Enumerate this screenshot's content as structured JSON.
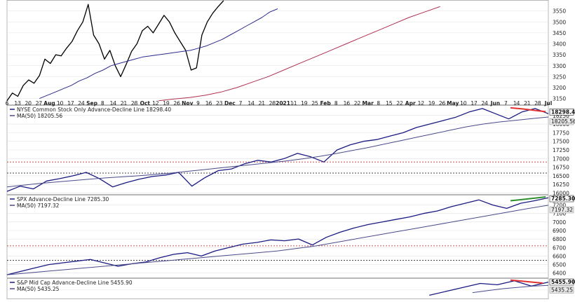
{
  "chart_data": [
    {
      "type": "line",
      "title": "",
      "x_tick_labels": [
        "6",
        "13",
        "20",
        "27",
        "Aug",
        "10",
        "17",
        "24",
        "Sep",
        "8",
        "14",
        "21",
        "28",
        "Oct",
        "12",
        "19",
        "26",
        "Nov",
        "9",
        "16",
        "23",
        "Dec",
        "7",
        "14",
        "21",
        "28",
        "2021",
        "11",
        "19",
        "25",
        "Feb",
        "8",
        "16",
        "22",
        "Mar",
        "8",
        "15",
        "22",
        "Apr",
        "12",
        "19",
        "26",
        "May",
        "10",
        "17",
        "24",
        "Jun",
        "7",
        "14",
        "21",
        "28",
        "Jul"
      ],
      "y_tick_labels": [
        "3550",
        "3500",
        "3450",
        "3400",
        "3350",
        "3300",
        "3250",
        "3200",
        "3150"
      ],
      "series": [
        {
          "name": "",
          "color": "#000000",
          "values": [
            3140,
            3175,
            3160,
            3210,
            3235,
            3220,
            3255,
            3330,
            3310,
            3350,
            3345,
            3380,
            3410,
            3460,
            3500,
            3580,
            3440,
            3400,
            3330,
            3370,
            3300,
            3250,
            3305,
            3365,
            3400,
            3460,
            3480,
            3450,
            3490,
            3530,
            3500,
            3450,
            3410,
            3370,
            3280,
            3290,
            3440,
            3500,
            3540,
            3570,
            3600
          ]
        },
        {
          "name": "",
          "color": "#2c2c8e",
          "values": [
            3150,
            3165,
            3180,
            3195,
            3210,
            3230,
            3245,
            3265,
            3280,
            3300,
            3310,
            3320,
            3330,
            3340,
            3345,
            3350,
            3355,
            3360,
            3365,
            3370,
            3380,
            3390,
            3405,
            3420,
            3440,
            3460,
            3480,
            3500,
            3520,
            3545,
            3560
          ]
        },
        {
          "name": "",
          "color": "#b03050",
          "values": [
            3140,
            3148,
            3155,
            3165,
            3180,
            3200,
            3225,
            3250,
            3280,
            3310,
            3340,
            3370,
            3400,
            3430,
            3460,
            3490,
            3520,
            3545,
            3570
          ]
        }
      ]
    },
    {
      "type": "line",
      "title": "",
      "y_tick_labels": [
        "18500",
        "18250",
        "18000",
        "17750",
        "17500",
        "17250",
        "17000",
        "16750",
        "16500",
        "16250",
        "16000"
      ],
      "series": [
        {
          "name": "NYSE Common Stock Only Advance-Decline Line 18298.40",
          "color": "#1a1a80",
          "last_value_label": "18298.40",
          "values": [
            16050,
            16200,
            16120,
            16350,
            16420,
            16500,
            16600,
            16420,
            16180,
            16300,
            16400,
            16480,
            16520,
            16600,
            16200,
            16450,
            16650,
            16700,
            16850,
            16950,
            16900,
            17000,
            17150,
            17050,
            16900,
            17250,
            17400,
            17500,
            17550,
            17650,
            17750,
            17900,
            18000,
            18100,
            18200,
            18350,
            18450,
            18300,
            18150,
            18350,
            18450,
            18300
          ]
        },
        {
          "name": "MA(50) 18205.56",
          "color": "#4a4a8a",
          "last_value_label": "18205.56",
          "values": [
            16180,
            16230,
            16280,
            16320,
            16360,
            16400,
            16440,
            16470,
            16500,
            16540,
            16580,
            16630,
            16680,
            16730,
            16780,
            16830,
            16880,
            16930,
            16990,
            17060,
            17140,
            17230,
            17320,
            17420,
            17520,
            17620,
            17720,
            17820,
            17920,
            18000,
            18060,
            18110,
            18160,
            18205
          ]
        },
        {
          "name": "",
          "color": "#e03030",
          "values": [
            18470,
            18440,
            18400,
            18360
          ]
        }
      ],
      "reference_lines": [
        {
          "value": 16900,
          "color": "#c05050"
        },
        {
          "value": 16580,
          "color": "#444444"
        }
      ]
    },
    {
      "type": "line",
      "title": "",
      "y_tick_labels": [
        "7200",
        "7100",
        "7000",
        "6900",
        "6800",
        "6700",
        "6600",
        "6500",
        "6400"
      ],
      "series": [
        {
          "name": "SPX Advance-Decline Line 7285.30",
          "color": "#1a1a80",
          "last_value_label": "7285.30",
          "values": [
            6380,
            6420,
            6460,
            6500,
            6520,
            6540,
            6560,
            6520,
            6480,
            6510,
            6530,
            6580,
            6620,
            6640,
            6600,
            6660,
            6700,
            6740,
            6760,
            6790,
            6780,
            6800,
            6730,
            6820,
            6880,
            6930,
            6970,
            7000,
            7030,
            7060,
            7100,
            7130,
            7180,
            7220,
            7260,
            7200,
            7160,
            7220,
            7250,
            7285
          ]
        },
        {
          "name": "MA(50) 7197.32",
          "color": "#4a4a8a",
          "last_value_label": "7197.32",
          "values": [
            6380,
            6400,
            6420,
            6440,
            6460,
            6480,
            6500,
            6520,
            6540,
            6560,
            6580,
            6600,
            6620,
            6640,
            6660,
            6690,
            6720,
            6760,
            6800,
            6840,
            6880,
            6920,
            6960,
            7000,
            7040,
            7080,
            7120,
            7160,
            7197
          ]
        },
        {
          "name": "",
          "color": "#2f8f2f",
          "values": [
            7250,
            7265,
            7280,
            7295
          ]
        }
      ],
      "reference_lines": [
        {
          "value": 6720,
          "color": "#c05050"
        },
        {
          "value": 6550,
          "color": "#444444"
        }
      ]
    },
    {
      "type": "line",
      "title": "",
      "y_tick_labels": [
        "5400"
      ],
      "series": [
        {
          "name": "S&P Mid Cap Advance-Decline Line 5455.90",
          "color": "#1a1a80",
          "last_value_label": "5455.90",
          "values": [
            5360,
            5390,
            5420,
            5450,
            5440,
            5470,
            5430,
            5460
          ]
        },
        {
          "name": "MA(50) 5435.25",
          "color": "#4a4a8a",
          "last_value_label": "5435.25",
          "values": [
            5380,
            5395,
            5410,
            5420,
            5430,
            5435
          ]
        },
        {
          "name": "",
          "color": "#e03030",
          "values": [
            5475,
            5468,
            5460,
            5452
          ]
        }
      ]
    }
  ]
}
